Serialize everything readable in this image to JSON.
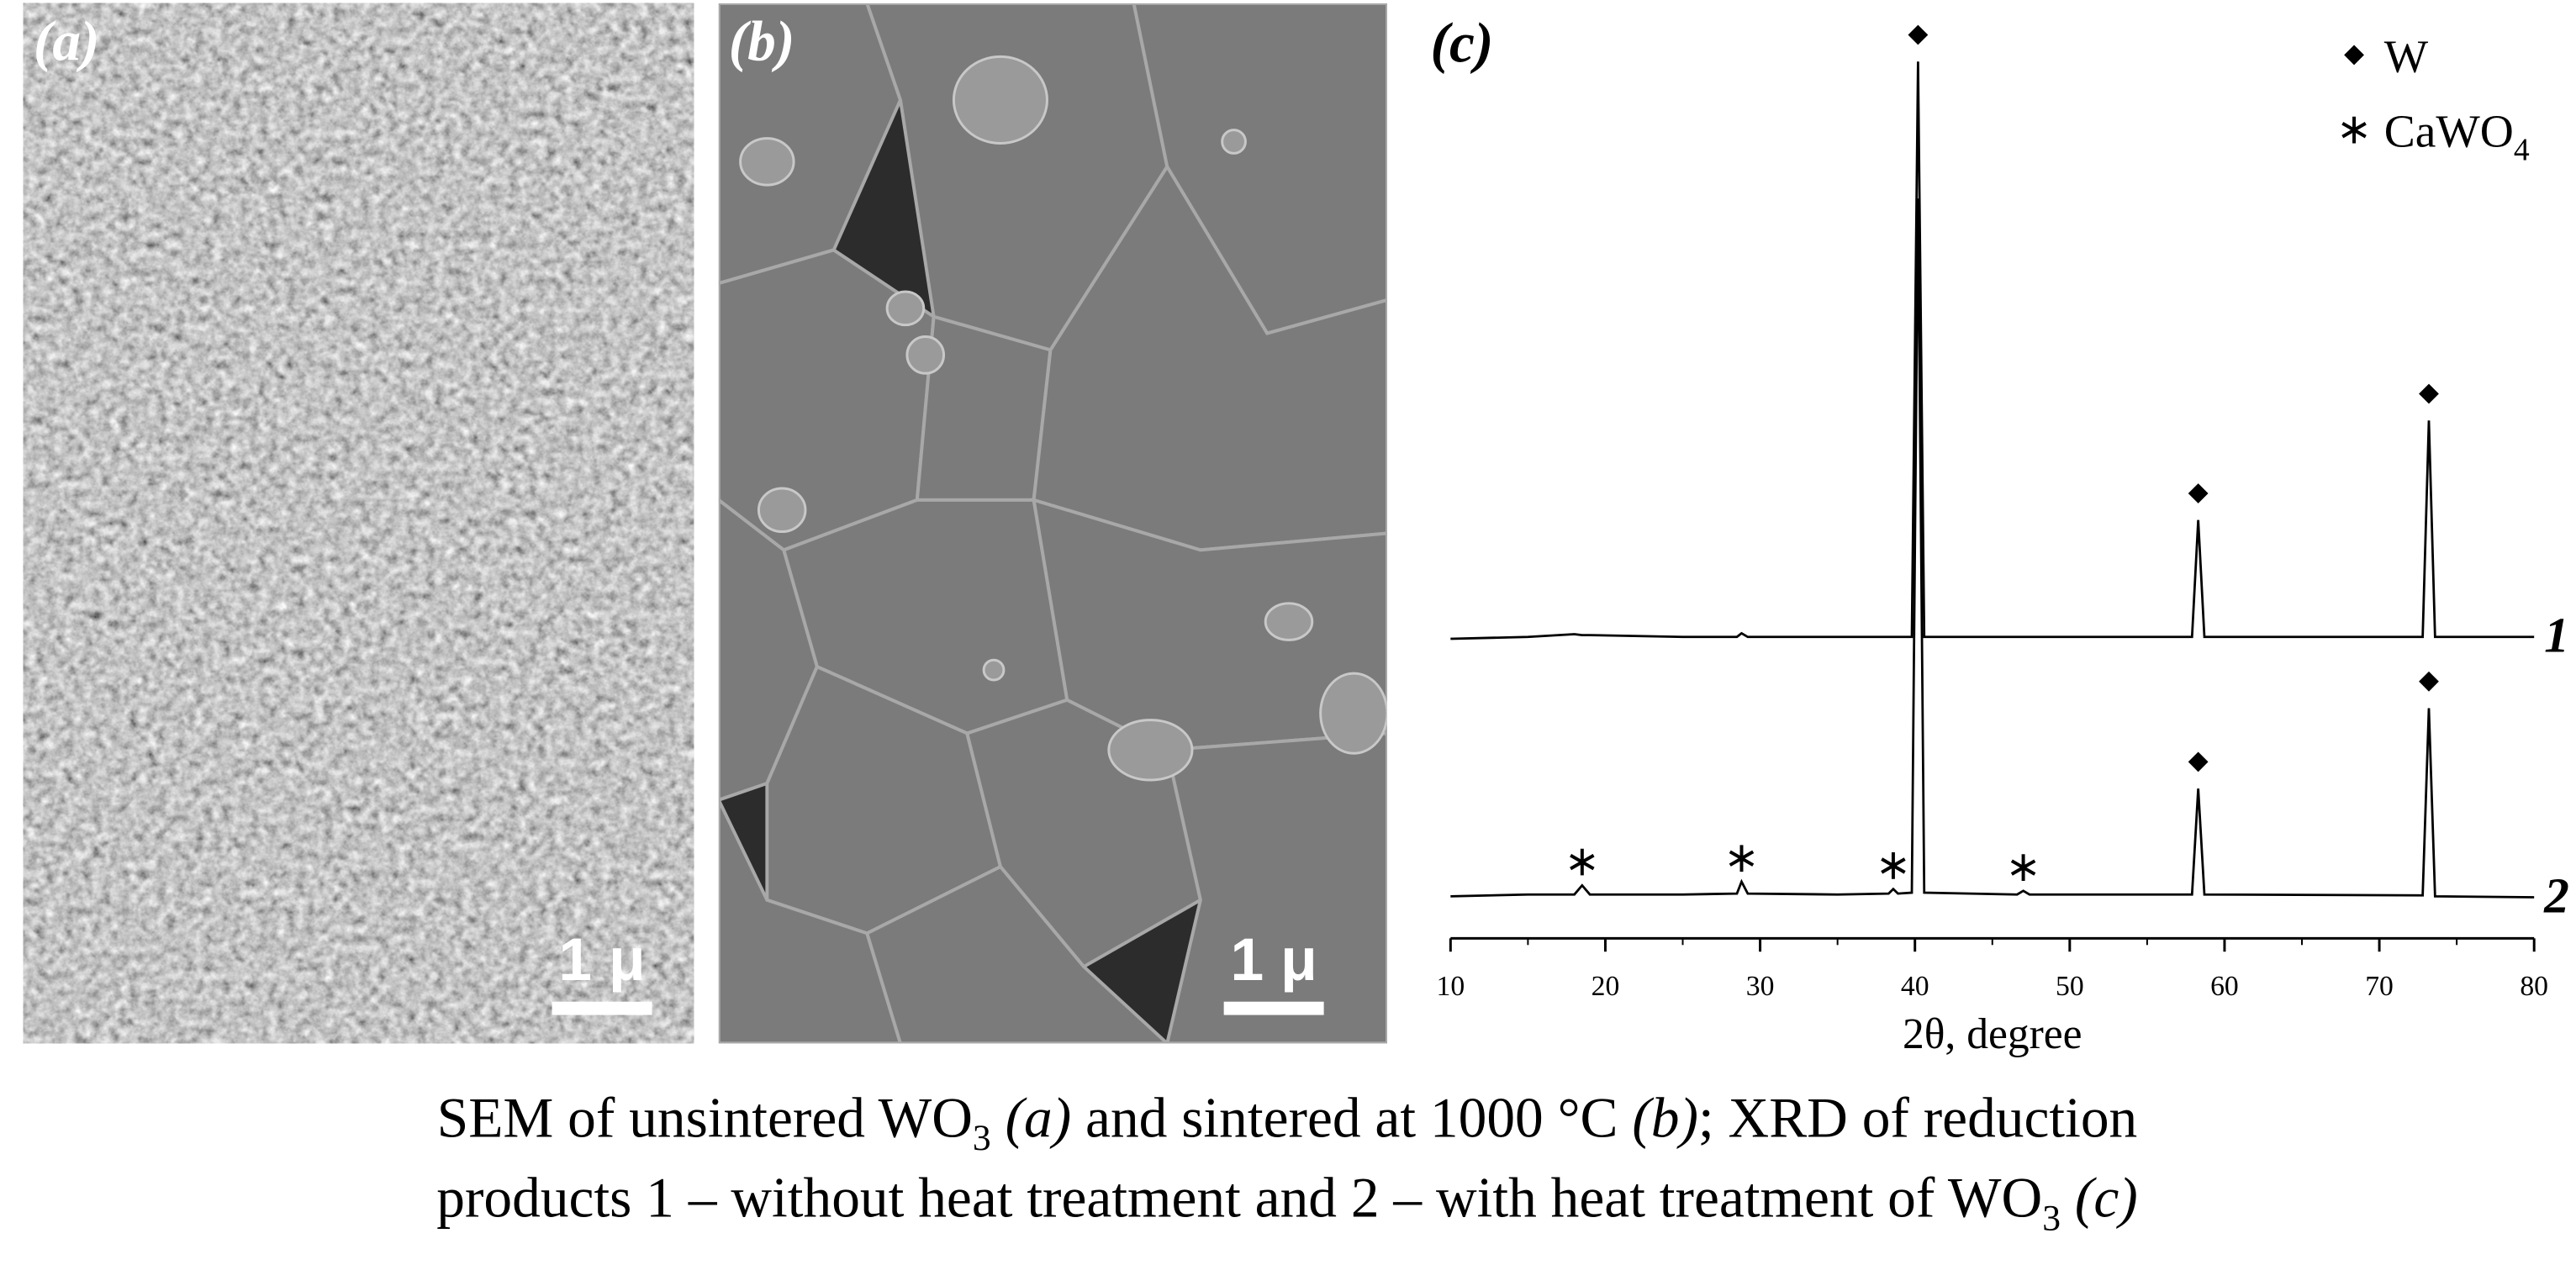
{
  "panels": [
    {
      "label": "(a)",
      "scale_bar": "1 μ"
    },
    {
      "label": "(b)",
      "scale_bar": "1 μ"
    }
  ],
  "chart_data": {
    "type": "line",
    "panel_label": "(c)",
    "xlabel": "2θ, degree",
    "xlim": [
      10,
      80
    ],
    "xticks": [
      10,
      20,
      30,
      40,
      50,
      60,
      70,
      80
    ],
    "ylim": [
      0,
      100
    ],
    "x": [
      10,
      15,
      18,
      18.5,
      19,
      25,
      28.5,
      28.8,
      29.2,
      35,
      38.3,
      38.6,
      38.9,
      39.8,
      40.2,
      40.6,
      46.6,
      47,
      47.4,
      57.9,
      58.3,
      58.7,
      72.8,
      73.2,
      73.6,
      80
    ],
    "series": [
      {
        "name": "1",
        "color": "#000000",
        "values": [
          32.8,
          33,
          33.3,
          33.2,
          33.2,
          33,
          33,
          33.4,
          33,
          33,
          33,
          33,
          33,
          33,
          96,
          33,
          33,
          33,
          33,
          33,
          45.8,
          33,
          33,
          56.7,
          33,
          33
        ]
      },
      {
        "name": "2",
        "color": "#000000",
        "values": [
          4.6,
          4.8,
          4.8,
          5.8,
          4.8,
          4.8,
          4.9,
          6.2,
          4.9,
          4.8,
          4.9,
          5.4,
          4.9,
          5,
          81,
          5,
          4.8,
          5.2,
          4.8,
          4.8,
          16.4,
          4.8,
          4.7,
          25.2,
          4.6,
          4.5
        ]
      }
    ],
    "phases": [
      {
        "name": "W",
        "symbol": "diamond",
        "peaks": [
          [
            40.2,
            58.3,
            73.2
          ],
          [
            58.3,
            73.2
          ]
        ]
      },
      {
        "name": "CaWO",
        "name_sub": "4",
        "symbol": "star",
        "peaks": [
          [],
          [
            18.5,
            28.8,
            38.6,
            47
          ]
        ]
      }
    ]
  },
  "caption": {
    "lines": [
      [
        {
          "text": "SEM of unsintered WO",
          "style": "normal"
        },
        {
          "text": "3",
          "style": "sub"
        },
        {
          "text": " (a)",
          "style": "italic"
        },
        {
          "text": " and sintered at 1000 °C ",
          "style": "normal"
        },
        {
          "text": "(b)",
          "style": "italic"
        },
        {
          "text": "; XRD of reduction",
          "style": "normal"
        }
      ],
      [
        {
          "text": "products 1 – without heat treatment and 2 – with heat treatment of WO",
          "style": "normal"
        },
        {
          "text": "3",
          "style": "sub"
        },
        {
          "text": " (c)",
          "style": "italic"
        }
      ]
    ]
  }
}
